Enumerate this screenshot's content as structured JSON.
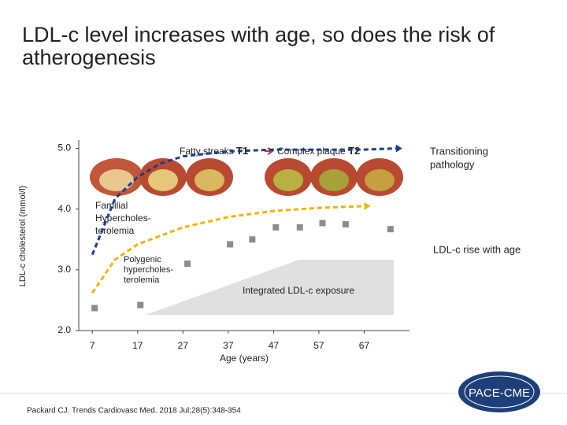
{
  "title": "LDL-c level increases with age, so does the risk of atherogenesis",
  "citation": "Packard CJ. Trends Cardiovasc Med. 2018 Jul;28(5):348-354",
  "logo": "PACE-CME",
  "chart_data": {
    "type": "scatter",
    "xlabel": "Age (years)",
    "ylabel": "LDL-c cholesterol (mmol/l)",
    "xlim": [
      4,
      77
    ],
    "ylim": [
      2,
      5.5
    ],
    "xticks": [
      7,
      17,
      27,
      37,
      47,
      57,
      67
    ],
    "yticks": [
      {
        "value": 2,
        "label": "2.0"
      },
      {
        "value": 3,
        "label": "3.0"
      },
      {
        "value": 4,
        "label": "4.0"
      },
      {
        "value": 5,
        "label": "5.0"
      }
    ],
    "x": [
      7.5,
      17.6,
      28,
      37.4,
      42.3,
      47.5,
      52.8,
      57.8,
      62.9,
      72.8
    ],
    "values": [
      2.37,
      2.42,
      3.1,
      3.42,
      3.5,
      3.7,
      3.7,
      3.77,
      3.75,
      3.67
    ],
    "color": "#8c8c8c",
    "series": [
      {
        "name": "Familial Hypercholesterolemia",
        "color": "#1f3c88",
        "x": [
          7,
          12,
          17,
          22,
          27,
          37,
          47,
          57,
          67,
          74
        ],
        "values": [
          3.25,
          4.17,
          4.53,
          4.75,
          4.87,
          4.95,
          4.98,
          4.98,
          4.98,
          5.0
        ]
      },
      {
        "name": "Polygenic hypercholesterolemia",
        "color": "#f0b400",
        "x": [
          7,
          12,
          17,
          27,
          37,
          47,
          57,
          67
        ],
        "values": [
          2.62,
          3.17,
          3.42,
          3.7,
          3.87,
          3.97,
          4.02,
          4.05
        ]
      }
    ],
    "labels": {
      "fatty_streaks": "Fatty streaks",
      "t1": "T1",
      "complex_plaque": "Complex plaque",
      "t2": "T2",
      "transitioning": [
        "Transitioning",
        "pathology"
      ],
      "familial": [
        "Familial",
        "Hypercholes-",
        "terolemia"
      ],
      "polygenic": [
        "Polygenic",
        "hypercholes-",
        "terolemia"
      ],
      "integrated": "Integrated LDL-c exposure",
      "rise": "LDL-c rise with age"
    }
  }
}
